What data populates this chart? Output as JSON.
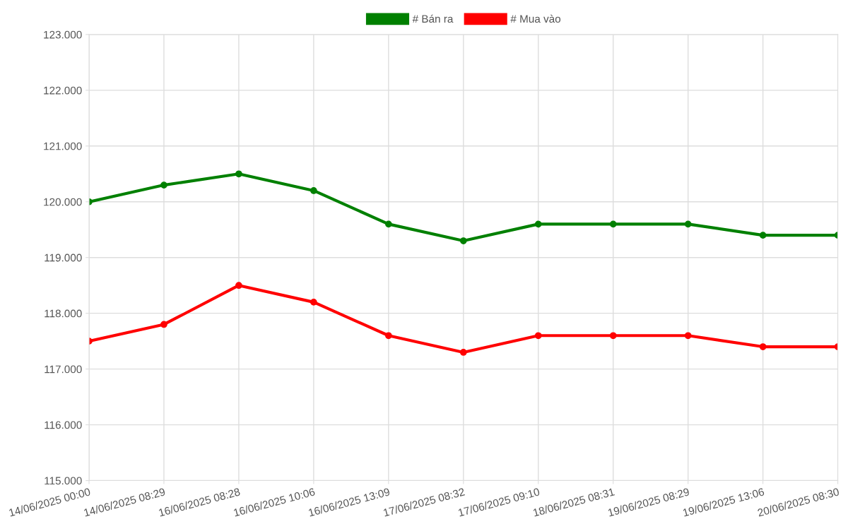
{
  "chart_data": {
    "type": "line",
    "categories": [
      "14/06/2025 00:00",
      "14/06/2025 08:29",
      "16/06/2025 08:28",
      "16/06/2025 10:06",
      "16/06/2025 13:09",
      "17/06/2025 08:32",
      "17/06/2025 09:10",
      "18/06/2025 08:31",
      "19/06/2025 08:29",
      "19/06/2025 13:06",
      "20/06/2025 08:30"
    ],
    "series": [
      {
        "name": "# Bán ra",
        "color": "#008000",
        "values": [
          120000,
          120300,
          120500,
          120200,
          119600,
          119300,
          119600,
          119600,
          119600,
          119400,
          119400
        ]
      },
      {
        "name": "# Mua vào",
        "color": "#ff0000",
        "values": [
          117500,
          117800,
          118500,
          118200,
          117600,
          117300,
          117600,
          117600,
          117600,
          117400,
          117400
        ]
      }
    ],
    "ylim": [
      115000,
      123000
    ],
    "yticks": [
      {
        "value": 115000,
        "label": "115.000"
      },
      {
        "value": 116000,
        "label": "116.000"
      },
      {
        "value": 117000,
        "label": "117.000"
      },
      {
        "value": 118000,
        "label": "118.000"
      },
      {
        "value": 119000,
        "label": "119.000"
      },
      {
        "value": 120000,
        "label": "120.000"
      },
      {
        "value": 121000,
        "label": "121.000"
      },
      {
        "value": 122000,
        "label": "122.000"
      },
      {
        "value": 123000,
        "label": "123.000"
      }
    ],
    "grid": true,
    "legend": "top",
    "marker": "circle",
    "line_style": "solid"
  }
}
